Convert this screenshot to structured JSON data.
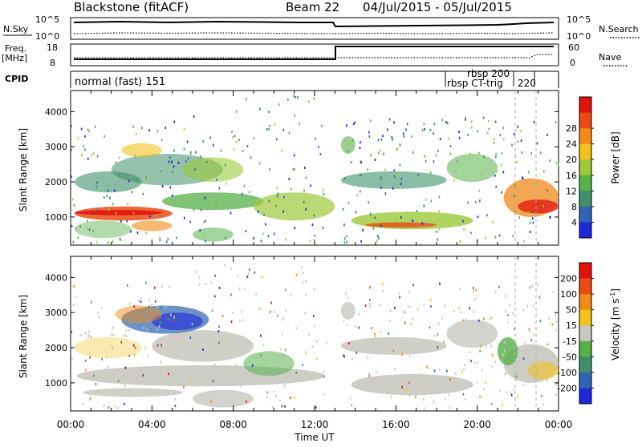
{
  "header": {
    "station": "Blackstone (fitACF)",
    "beam": "Beam 22",
    "dates": "04/Jul/2015 - 05/Jul/2015"
  },
  "strip": {
    "nsky_label": "N.Sky",
    "nsky_ticks": [
      "10^5",
      "10^0"
    ],
    "nsearch_label": "N.Search",
    "freq_label": "Freq.",
    "freq_unit": "[MHz]",
    "freq_ticks": [
      "18",
      "8"
    ],
    "nave_label": "Nave",
    "nave_ticks": [
      "60",
      "0"
    ],
    "cpid_label": "CPID",
    "cpid_modes": [
      "normal (fast) 151",
      "rbsp 200",
      "rbsp CT-trig",
      "220"
    ]
  },
  "chart_data": [
    {
      "type": "heatmap",
      "name": "power",
      "ylabel": "Slant Range [km]",
      "yticks": [
        1000,
        2000,
        3000,
        4000
      ],
      "ylim": [
        200,
        4600
      ],
      "xlim": [
        0,
        24
      ],
      "xticks": [
        "00:00",
        "04:00",
        "08:00",
        "12:00",
        "16:00",
        "20:00",
        "00:00"
      ],
      "colorbar": {
        "label": "Power [dB]",
        "ticks": [
          "4",
          "8",
          "12",
          "16",
          "20",
          "24",
          "28"
        ],
        "colors": [
          "#1e28d8",
          "#2f64b4",
          "#3e8f6a",
          "#58b04a",
          "#9cc93a",
          "#f2c21b",
          "#f08a18",
          "#ea4c14",
          "#e0140f"
        ]
      }
    },
    {
      "type": "heatmap",
      "name": "velocity",
      "ylabel": "Slant Range [km]",
      "yticks": [
        1000,
        2000,
        3000,
        4000
      ],
      "ylim": [
        200,
        4600
      ],
      "xlim": [
        0,
        24
      ],
      "xticks": [
        "00:00",
        "04:00",
        "08:00",
        "12:00",
        "16:00",
        "20:00",
        "00:00"
      ],
      "xlabel": "Time UT",
      "colorbar": {
        "label": "Velocity [m s",
        "label_sup": "-1",
        "label_end": "]",
        "ticks": [
          "200",
          "100",
          "50",
          "15",
          "-15",
          "-50",
          "-100",
          "-200"
        ],
        "colors": [
          "#1e28d8",
          "#2f64b4",
          "#3e8f6a",
          "#58b04a",
          "#c8c8c0",
          "#f2c21b",
          "#f08a18",
          "#ea4c14",
          "#e0140f"
        ]
      }
    }
  ]
}
